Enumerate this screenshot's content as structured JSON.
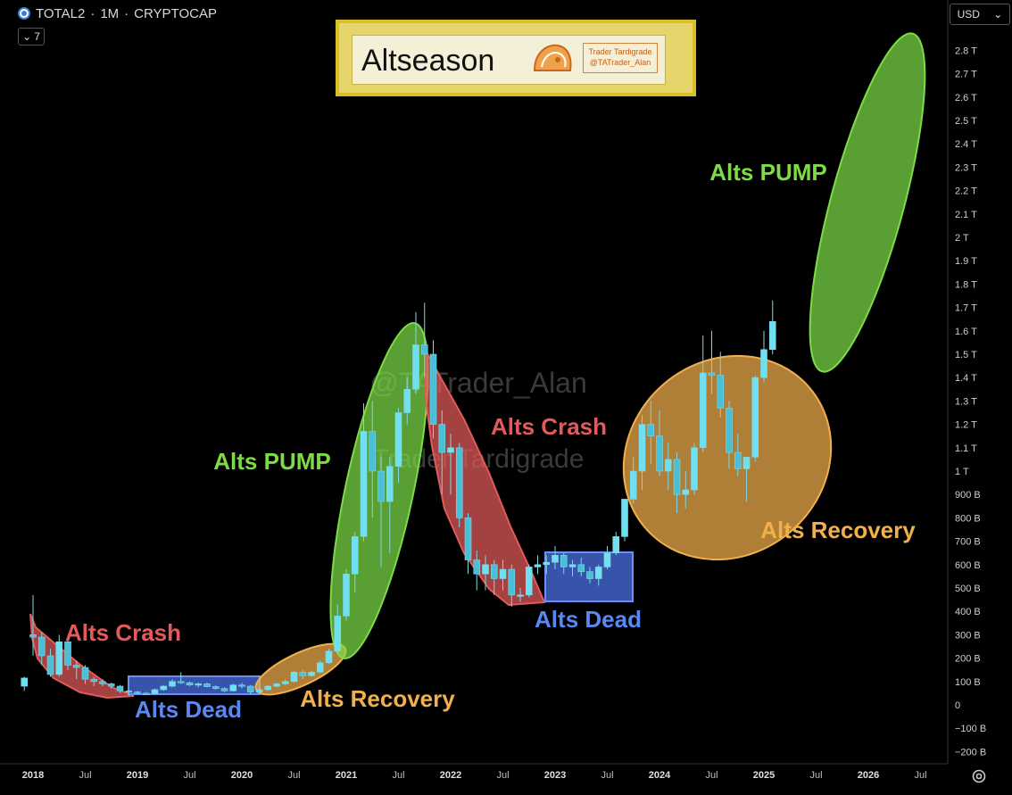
{
  "header": {
    "symbol": "TOTAL2",
    "sep1": "·",
    "interval": "1M",
    "sep2": "·",
    "exchange": "CRYPTOCAP",
    "collapse_count": "7"
  },
  "toolbar": {
    "currency": "USD"
  },
  "banner": {
    "title": "Altseason",
    "badge_line1": "Trader Tardigrade",
    "badge_line2": "@TATrader_Alan"
  },
  "watermark": {
    "line1": "@TATrader_Alan",
    "line2": "Trader Tardigrade"
  },
  "colors": {
    "up": "#5ad3e8",
    "down": "#5ad3e8",
    "crash": "#e35a5a",
    "pump": "#7ddc46",
    "recovery": "#f2b04c",
    "dead": "#4a6fe3",
    "background": "#000000"
  },
  "chart_data": {
    "type": "candlestick",
    "title": "",
    "xlabel": "",
    "ylabel": "",
    "y_unit": "USD",
    "ylim": [
      -200000000000,
      3000000000000
    ],
    "y_ticks": [
      "2.8 T",
      "2.7 T",
      "2.6 T",
      "2.5 T",
      "2.4 T",
      "2.3 T",
      "2.2 T",
      "2.1 T",
      "2 T",
      "1.9 T",
      "1.8 T",
      "1.7 T",
      "1.6 T",
      "1.5 T",
      "1.4 T",
      "1.3 T",
      "1.2 T",
      "1.1 T",
      "1 T",
      "900 B",
      "800 B",
      "700 B",
      "600 B",
      "500 B",
      "400 B",
      "300 B",
      "200 B",
      "100 B",
      "0",
      "−100 B",
      "−200 B"
    ],
    "x_ticks": [
      "2018",
      "Jul",
      "2019",
      "Jul",
      "2020",
      "Jul",
      "2021",
      "Jul",
      "2022",
      "Jul",
      "2023",
      "Jul",
      "2024",
      "Jul",
      "2025",
      "Jul",
      "2026",
      "Jul"
    ],
    "x_tick_dates": [
      2018.0,
      2018.5,
      2019.0,
      2019.5,
      2020.0,
      2020.5,
      2021.0,
      2021.5,
      2022.0,
      2022.5,
      2023.0,
      2023.5,
      2024.0,
      2024.5,
      2025.0,
      2025.5,
      2026.0,
      2026.5
    ],
    "candles_desc": "monthly OHLC values (USD billions) [open, high, low, close]",
    "candles_start": "2017-12",
    "candles": [
      [
        80,
        120,
        60,
        115
      ],
      [
        300,
        470,
        210,
        290
      ],
      [
        290,
        310,
        170,
        210
      ],
      [
        210,
        240,
        120,
        130
      ],
      [
        130,
        300,
        120,
        270
      ],
      [
        270,
        280,
        150,
        170
      ],
      [
        170,
        190,
        110,
        160
      ],
      [
        160,
        170,
        90,
        110
      ],
      [
        110,
        120,
        80,
        100
      ],
      [
        100,
        110,
        80,
        90
      ],
      [
        90,
        95,
        70,
        80
      ],
      [
        80,
        85,
        50,
        60
      ],
      [
        60,
        65,
        40,
        55
      ],
      [
        55,
        60,
        45,
        50
      ],
      [
        50,
        55,
        45,
        48
      ],
      [
        48,
        70,
        45,
        65
      ],
      [
        65,
        85,
        60,
        80
      ],
      [
        80,
        110,
        75,
        100
      ],
      [
        100,
        140,
        90,
        95
      ],
      [
        95,
        100,
        80,
        85
      ],
      [
        85,
        95,
        75,
        90
      ],
      [
        90,
        95,
        75,
        78
      ],
      [
        78,
        85,
        65,
        70
      ],
      [
        70,
        75,
        55,
        60
      ],
      [
        60,
        90,
        58,
        85
      ],
      [
        85,
        95,
        70,
        80
      ],
      [
        80,
        85,
        45,
        55
      ],
      [
        55,
        70,
        50,
        65
      ],
      [
        65,
        85,
        60,
        80
      ],
      [
        80,
        95,
        75,
        90
      ],
      [
        90,
        110,
        85,
        100
      ],
      [
        100,
        145,
        95,
        140
      ],
      [
        140,
        150,
        110,
        125
      ],
      [
        125,
        145,
        120,
        140
      ],
      [
        140,
        190,
        135,
        180
      ],
      [
        180,
        240,
        175,
        230
      ],
      [
        230,
        430,
        220,
        380
      ],
      [
        380,
        580,
        360,
        560
      ],
      [
        560,
        740,
        480,
        720
      ],
      [
        720,
        1290,
        700,
        1170
      ],
      [
        1170,
        1300,
        800,
        1000
      ],
      [
        1000,
        1060,
        590,
        870
      ],
      [
        870,
        1060,
        650,
        1020
      ],
      [
        1020,
        1270,
        950,
        1250
      ],
      [
        1250,
        1400,
        1200,
        1350
      ],
      [
        1350,
        1680,
        1330,
        1540
      ],
      [
        1540,
        1720,
        1400,
        1500
      ],
      [
        1500,
        1560,
        1140,
        1200
      ],
      [
        1200,
        1260,
        900,
        1080
      ],
      [
        1080,
        1160,
        900,
        1100
      ],
      [
        1100,
        1120,
        760,
        800
      ],
      [
        800,
        820,
        560,
        620
      ],
      [
        620,
        660,
        490,
        560
      ],
      [
        560,
        640,
        490,
        600
      ],
      [
        600,
        620,
        470,
        540
      ],
      [
        540,
        620,
        490,
        580
      ],
      [
        580,
        600,
        420,
        470
      ],
      [
        470,
        500,
        440,
        470
      ],
      [
        470,
        600,
        460,
        590
      ],
      [
        590,
        640,
        560,
        600
      ],
      [
        600,
        640,
        560,
        610
      ],
      [
        610,
        680,
        580,
        640
      ],
      [
        640,
        650,
        560,
        590
      ],
      [
        590,
        620,
        550,
        600
      ],
      [
        600,
        630,
        550,
        570
      ],
      [
        570,
        590,
        520,
        540
      ],
      [
        540,
        600,
        510,
        590
      ],
      [
        590,
        680,
        580,
        650
      ],
      [
        650,
        740,
        640,
        720
      ],
      [
        720,
        880,
        700,
        880
      ],
      [
        880,
        1060,
        860,
        1000
      ],
      [
        1000,
        1240,
        920,
        1200
      ],
      [
        1200,
        1300,
        1030,
        1150
      ],
      [
        1150,
        1260,
        980,
        1000
      ],
      [
        1000,
        1120,
        920,
        1050
      ],
      [
        1050,
        1080,
        820,
        900
      ],
      [
        900,
        1000,
        840,
        920
      ],
      [
        920,
        1120,
        900,
        1100
      ],
      [
        1100,
        1580,
        1080,
        1420
      ],
      [
        1420,
        1600,
        1330,
        1410
      ],
      [
        1410,
        1510,
        1230,
        1270
      ],
      [
        1270,
        1300,
        1010,
        1080
      ],
      [
        1080,
        1160,
        980,
        1010
      ],
      [
        1010,
        1060,
        870,
        1060
      ],
      [
        1060,
        1410,
        1040,
        1400
      ],
      [
        1400,
        1600,
        1380,
        1520
      ],
      [
        1520,
        1730,
        1500,
        1640
      ]
    ],
    "annotations": [
      {
        "label": "Alts Crash",
        "color": "crash",
        "shape": "ellipse"
      },
      {
        "label": "Alts Dead",
        "color": "dead",
        "shape": "box"
      },
      {
        "label": "Alts Recovery",
        "color": "recovery",
        "shape": "ellipse"
      },
      {
        "label": "Alts PUMP",
        "color": "pump",
        "shape": "ellipse"
      },
      {
        "label": "Alts Crash",
        "color": "crash",
        "shape": "ellipse"
      },
      {
        "label": "Alts Dead",
        "color": "dead",
        "shape": "box"
      },
      {
        "label": "Alts Recovery",
        "color": "recovery",
        "shape": "ellipse"
      },
      {
        "label": "Alts PUMP",
        "color": "pump",
        "shape": "ellipse"
      }
    ],
    "grid": false,
    "legend": "none"
  }
}
